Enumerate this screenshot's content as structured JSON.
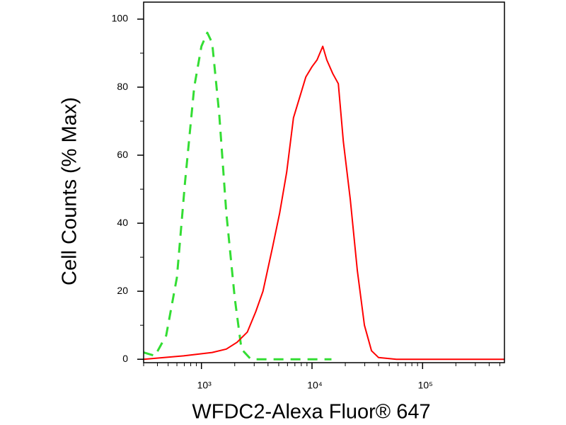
{
  "chart_data": {
    "type": "line",
    "x_scale": "log",
    "xlabel": "WFDC2-Alexa Fluor® 647",
    "ylabel": "Cell Counts (% Max)",
    "xlim": [
      300,
      550000
    ],
    "ylim": [
      -1,
      105
    ],
    "xticks": [
      {
        "value": 1000,
        "label": "10³"
      },
      {
        "value": 10000,
        "label": "10⁴"
      },
      {
        "value": 100000,
        "label": "10⁵"
      }
    ],
    "xminorticks": [
      300,
      400,
      500,
      600,
      700,
      800,
      900,
      2000,
      3000,
      4000,
      5000,
      6000,
      7000,
      8000,
      9000,
      20000,
      30000,
      40000,
      50000,
      60000,
      70000,
      80000,
      90000,
      200000,
      300000,
      400000,
      500000
    ],
    "yticks": [
      0,
      20,
      40,
      60,
      80,
      100
    ],
    "yminorticks": [
      10,
      30,
      50,
      70,
      90
    ],
    "series": [
      {
        "color": "#33dd33",
        "dash": true,
        "x": [
          300,
          380,
          480,
          600,
          710,
          860,
          1000,
          1130,
          1250,
          1450,
          1680,
          2000,
          2300,
          2800,
          3500,
          6000,
          10000,
          15000
        ],
        "values": [
          2,
          1,
          7,
          24,
          52,
          80,
          92,
          96,
          93,
          72,
          43,
          18,
          3,
          0,
          0,
          0,
          0,
          0
        ]
      },
      {
        "color": "#ff0000",
        "dash": false,
        "x": [
          300,
          690,
          1250,
          1680,
          2100,
          2600,
          3100,
          3600,
          4400,
          5100,
          5900,
          6800,
          7900,
          8800,
          10000,
          11100,
          12500,
          13600,
          15400,
          17300,
          19200,
          22200,
          25700,
          29800,
          34500,
          40000,
          58000,
          550000
        ],
        "values": [
          0,
          1,
          2,
          3,
          5,
          8,
          14,
          20,
          33,
          43,
          55,
          71,
          78,
          83,
          86,
          88,
          92,
          88,
          84,
          81,
          64,
          47,
          26,
          10,
          2.5,
          0.5,
          0,
          0
        ]
      }
    ]
  }
}
